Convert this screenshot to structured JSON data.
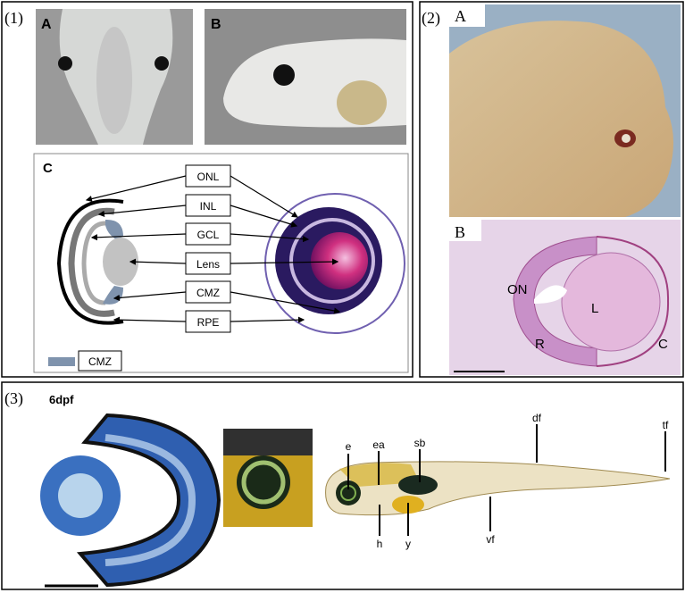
{
  "panel1": {
    "label": "(1)",
    "A": {
      "label": "A"
    },
    "B": {
      "label": "B"
    },
    "C": {
      "label": "C",
      "layers": [
        "ONL",
        "INL",
        "GCL",
        "Lens",
        "CMZ",
        "RPE"
      ],
      "legend": {
        "label": "CMZ",
        "color": "#7f93ad"
      }
    }
  },
  "panel2": {
    "label": "(2)",
    "A": {
      "label": "A"
    },
    "B": {
      "label": "B",
      "annotations": {
        "on": "ON",
        "l": "L",
        "r": "R",
        "c": "C"
      }
    }
  },
  "panel3": {
    "label": "(3)",
    "stage": "6dpf",
    "annotations": {
      "e": "e",
      "ea": "ea",
      "sb": "sb",
      "df": "df",
      "tf": "tf",
      "h": "h",
      "y": "y",
      "vf": "vf"
    }
  }
}
